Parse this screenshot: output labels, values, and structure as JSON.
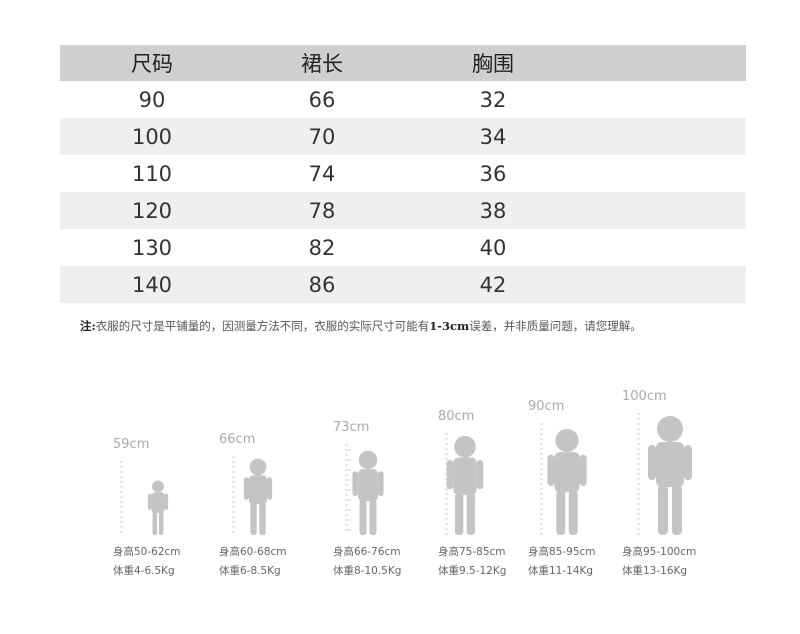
{
  "table": {
    "headers": [
      "尺码",
      "裙长",
      "胸围"
    ],
    "rows": [
      [
        "90",
        "66",
        "32"
      ],
      [
        "100",
        "70",
        "34"
      ],
      [
        "110",
        "74",
        "36"
      ],
      [
        "120",
        "78",
        "38"
      ],
      [
        "130",
        "82",
        "40"
      ],
      [
        "140",
        "86",
        "42"
      ]
    ]
  },
  "note": {
    "prefix": "注:",
    "text1": "衣服的尺寸是平铺量的，因测量方法不同，衣服的实际尺寸可能有",
    "bold": "1-3cm",
    "text2": "误差，并非质量问题，请您理解。"
  },
  "figures": [
    {
      "height_label": "59cm",
      "height_range": "身高50-62cm",
      "weight_range": "体重4-6.5Kg"
    },
    {
      "height_label": "66cm",
      "height_range": "身高60-68cm",
      "weight_range": "体重6-8.5Kg"
    },
    {
      "height_label": "73cm",
      "height_range": "身高66-76cm",
      "weight_range": "体重8-10.5Kg"
    },
    {
      "height_label": "80cm",
      "height_range": "身高75-85cm",
      "weight_range": "体重9.5-12Kg"
    },
    {
      "height_label": "90cm",
      "height_range": "身高85-95cm",
      "weight_range": "体重11-14Kg"
    },
    {
      "height_label": "100cm",
      "height_range": "身高95-100cm",
      "weight_range": "体重13-16Kg"
    }
  ],
  "colors": {
    "header_bg": "#cfcfcf",
    "stripe": "#efefef",
    "silhouette": "#c4c4c4"
  }
}
